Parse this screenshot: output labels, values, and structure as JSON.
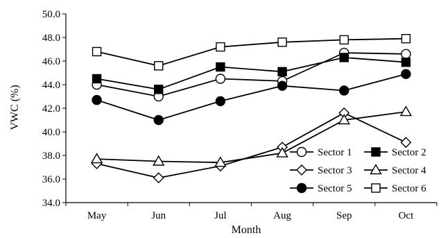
{
  "chart_data": {
    "type": "line",
    "xlabel": "Month",
    "ylabel": "VWC (%)",
    "ylim": [
      34.0,
      50.0
    ],
    "yticks": [
      "34.0",
      "36.0",
      "38.0",
      "40.0",
      "42.0",
      "44.0",
      "46.0",
      "48.0",
      "50.0"
    ],
    "categories": [
      "May",
      "Jun",
      "Jul",
      "Aug",
      "Sep",
      "Oct"
    ],
    "grid": false,
    "legend_position": "bottom-right",
    "series": [
      {
        "name": "Sector 1",
        "marker": "circle-open",
        "values": [
          44.0,
          43.0,
          44.5,
          44.3,
          46.7,
          46.6
        ]
      },
      {
        "name": "Sector 2",
        "marker": "square-filled",
        "values": [
          44.5,
          43.6,
          45.5,
          45.1,
          46.3,
          45.9
        ]
      },
      {
        "name": "Sector 3",
        "marker": "diamond-open",
        "values": [
          37.3,
          36.1,
          37.1,
          38.7,
          41.6,
          39.1
        ]
      },
      {
        "name": "Sector 4",
        "marker": "triangle-open",
        "values": [
          37.7,
          37.5,
          37.4,
          38.2,
          41.0,
          41.7
        ]
      },
      {
        "name": "Sector 5",
        "marker": "circle-filled",
        "values": [
          42.7,
          41.0,
          42.6,
          43.9,
          43.5,
          44.9
        ]
      },
      {
        "name": "Sector 6",
        "marker": "square-open",
        "values": [
          46.8,
          45.6,
          47.2,
          47.6,
          47.8,
          47.9
        ]
      }
    ]
  }
}
